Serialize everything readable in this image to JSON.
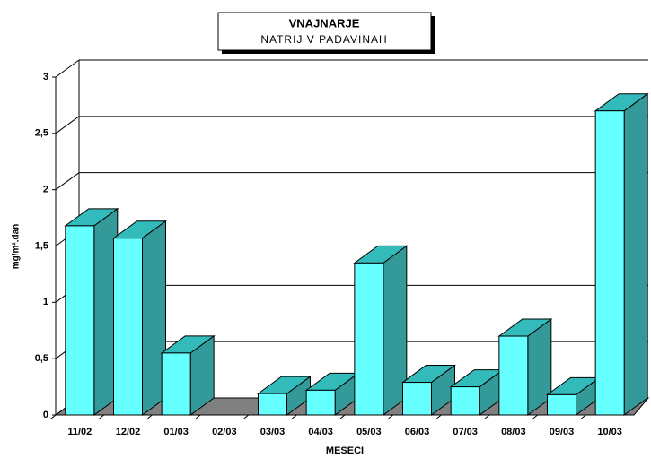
{
  "chart_data": {
    "type": "bar3d",
    "title": "VNAJNARJE",
    "subtitle": "NATRIJ V PADAVINAH",
    "x_label": "MESECI",
    "y_label": "mg/m².dan",
    "categories": [
      "11/02",
      "12/02",
      "01/03",
      "02/03",
      "03/03",
      "04/03",
      "05/03",
      "06/03",
      "07/03",
      "08/03",
      "09/03",
      "10/03"
    ],
    "values": [
      1.68,
      1.57,
      0.55,
      null,
      0.19,
      0.22,
      1.35,
      0.29,
      0.25,
      0.7,
      0.18,
      2.7
    ],
    "color": "#66ffff",
    "side_color": "#339999",
    "top_color": "#33bbbb",
    "floor_color": "#808080",
    "ylim": [
      0,
      3
    ],
    "yticks": [
      0,
      {
        "value": 0.5,
        "label": "0,5"
      },
      1,
      {
        "value": 1.5,
        "label": "1,5"
      },
      2,
      {
        "value": 2.5,
        "label": "2,5"
      },
      3
    ],
    "grid": true
  }
}
